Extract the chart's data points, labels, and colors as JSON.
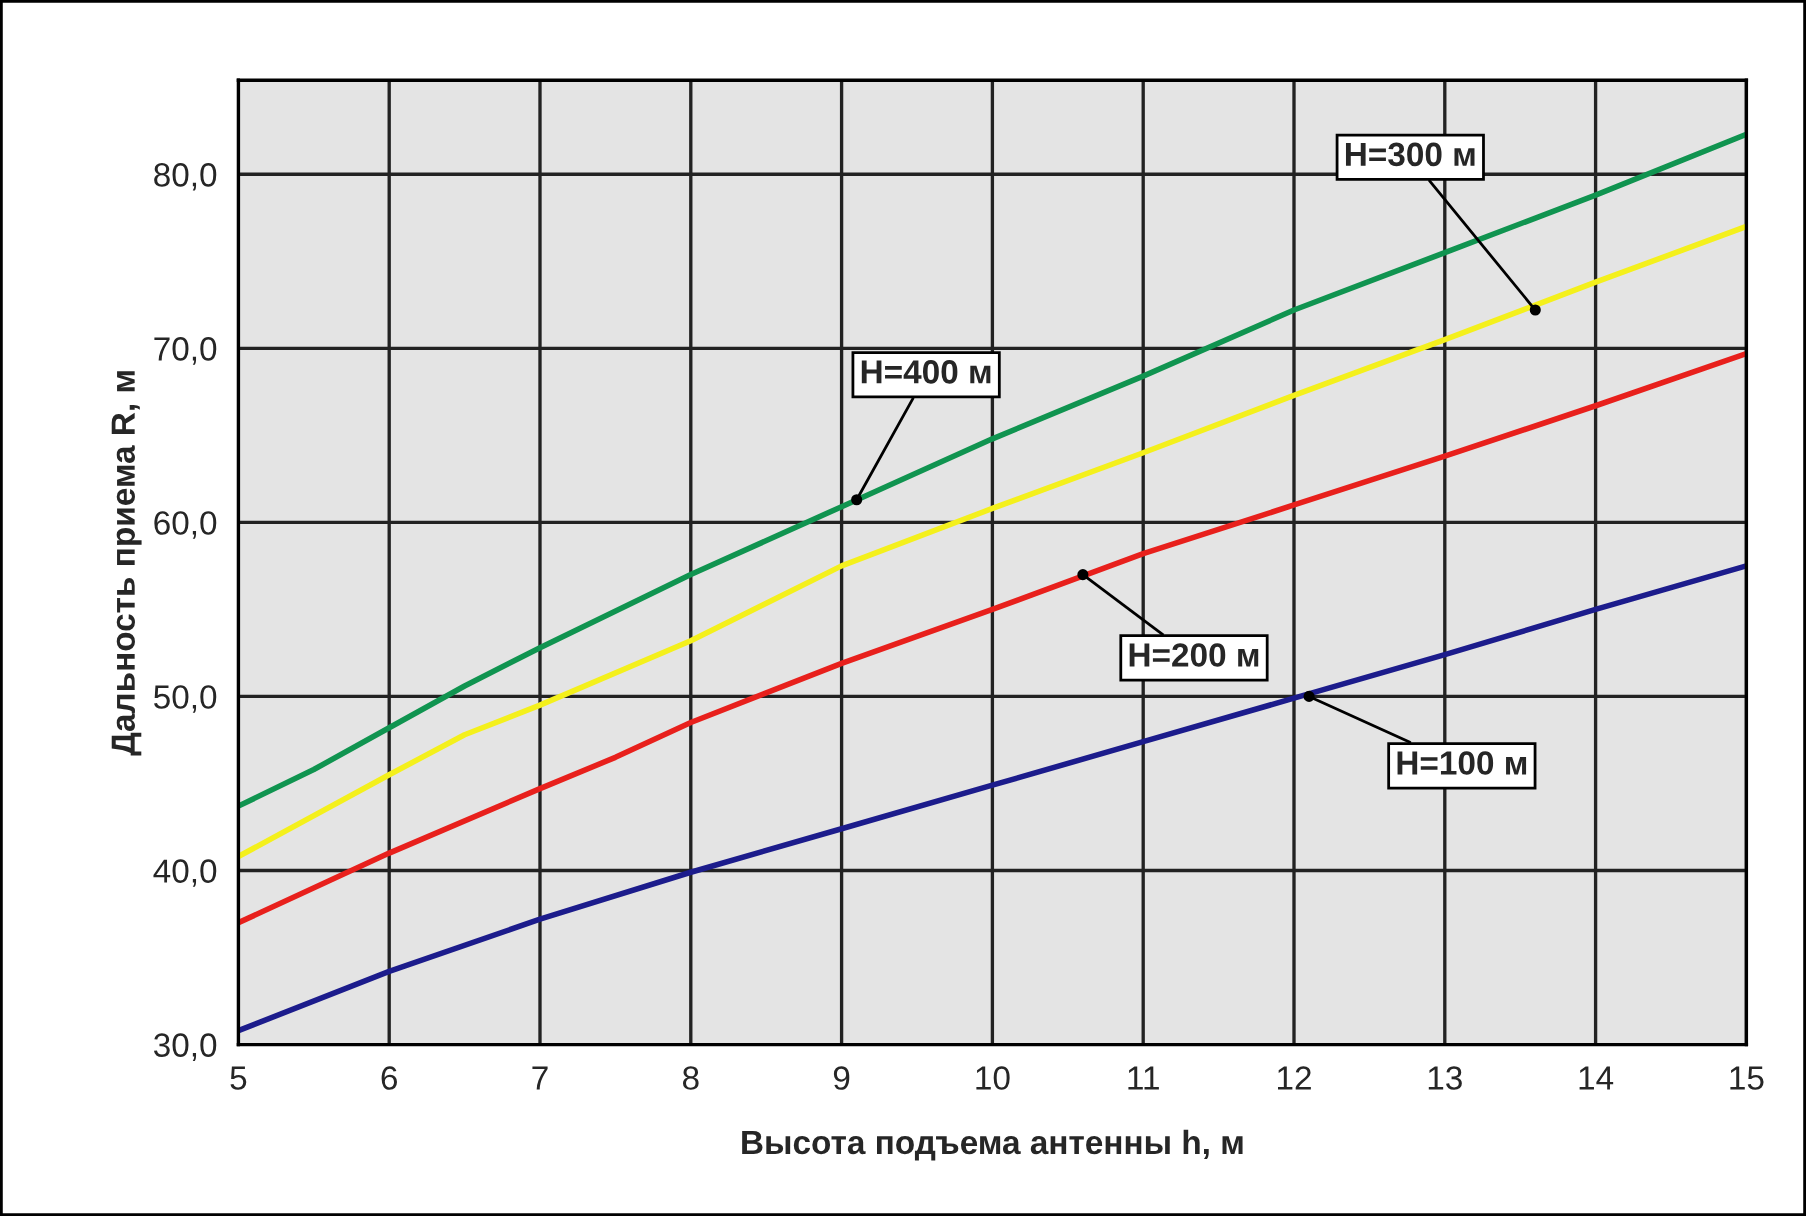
{
  "chart_data": {
    "type": "line",
    "xlabel": "Высота подъема антенны h, м",
    "ylabel": "Дальность приема R, м",
    "xlim": [
      5,
      15
    ],
    "xticks": [
      5,
      6,
      7,
      8,
      9,
      10,
      11,
      12,
      13,
      14,
      15
    ],
    "ylim": [
      30,
      85.4
    ],
    "yticks": [
      {
        "value": 30,
        "label": "30,0"
      },
      {
        "value": 40,
        "label": "40,0"
      },
      {
        "value": 50,
        "label": "50,0"
      },
      {
        "value": 60,
        "label": "60,0"
      },
      {
        "value": 70,
        "label": "70,0"
      },
      {
        "value": 80,
        "label": "80,0"
      }
    ],
    "grid": true,
    "legend": false,
    "marker": "none",
    "line_style": "solid",
    "series": [
      {
        "color": "#1c1c8c",
        "x": [
          5,
          6,
          7,
          8,
          9,
          10,
          11,
          12,
          13,
          14,
          15
        ],
        "values": [
          30.8,
          34.2,
          37.2,
          39.9,
          42.4,
          44.9,
          47.4,
          49.9,
          52.4,
          55.0,
          57.5
        ]
      },
      {
        "color": "#e8201c",
        "x": [
          5,
          6,
          7,
          7.5,
          8,
          9,
          10,
          11,
          12,
          13,
          14,
          15
        ],
        "values": [
          37.0,
          41.0,
          44.7,
          46.5,
          48.5,
          51.9,
          55.0,
          58.2,
          61.0,
          63.8,
          66.7,
          69.7
        ]
      },
      {
        "color": "#f4f01c",
        "x": [
          5,
          6,
          6.5,
          7,
          8,
          9,
          10,
          11,
          12,
          13,
          14,
          15
        ],
        "values": [
          40.8,
          45.5,
          47.8,
          49.5,
          53.2,
          57.5,
          60.8,
          64.0,
          67.3,
          70.5,
          73.8,
          77.0
        ]
      },
      {
        "color": "#109450",
        "x": [
          5,
          5.5,
          6,
          6.5,
          7,
          8,
          9,
          10,
          11,
          12,
          13,
          14,
          15
        ],
        "values": [
          43.7,
          45.8,
          48.2,
          50.6,
          52.8,
          57.0,
          60.9,
          64.8,
          68.4,
          72.2,
          75.5,
          78.8,
          82.3
        ]
      }
    ],
    "annotations": [
      {
        "text": "H=400 м",
        "x": 9.1,
        "y": 61.3
      },
      {
        "text": "H=300 м",
        "x": 13.6,
        "y": 72.2
      },
      {
        "text": "H=200 м",
        "x": 10.6,
        "y": 57.0
      },
      {
        "text": "H=100 м",
        "x": 12.1,
        "y": 50.0
      }
    ]
  }
}
